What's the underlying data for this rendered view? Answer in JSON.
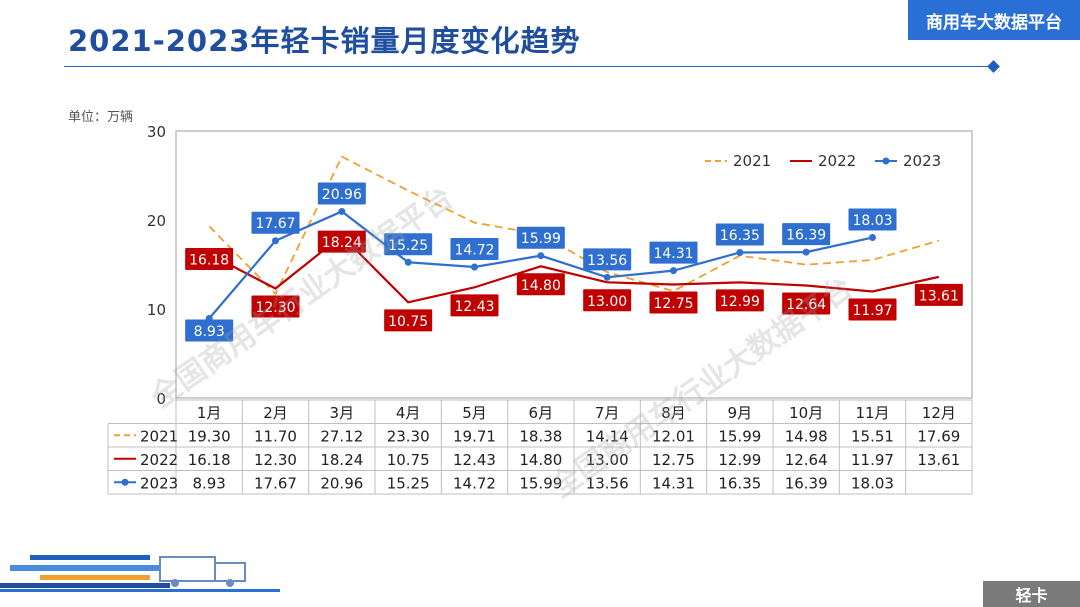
{
  "page": {
    "title": "2021-2023年轻卡销量月度变化趋势",
    "brand": "商用车大数据平台",
    "unit": "单位：万辆",
    "footer_tag": "轻卡",
    "watermark": "全国商用车行业大数据平台"
  },
  "colors": {
    "s2021": "#f0a030",
    "s2022": "#c00000",
    "s2023": "#2e6fd0",
    "title": "#1f4e9e",
    "brand_bg": "#2a6fd6"
  },
  "chart_data": {
    "type": "line",
    "categories": [
      "1月",
      "2月",
      "3月",
      "4月",
      "5月",
      "6月",
      "7月",
      "8月",
      "9月",
      "10月",
      "11月",
      "12月"
    ],
    "ylim": [
      0,
      30
    ],
    "yticks": [
      0,
      10,
      20,
      30
    ],
    "grid": false,
    "legend": "top-right",
    "series": [
      {
        "name": "2021",
        "style": "dashed",
        "values": [
          19.3,
          11.7,
          27.12,
          23.3,
          19.71,
          18.38,
          14.14,
          12.01,
          15.99,
          14.98,
          15.51,
          17.69
        ],
        "labels": [
          "19.30",
          "11.70",
          "27.12",
          "23.30",
          "19.71",
          "18.38",
          "14.14",
          "12.01",
          "15.99",
          "14.98",
          "15.51",
          "17.69"
        ]
      },
      {
        "name": "2022",
        "style": "solid",
        "values": [
          16.18,
          12.3,
          18.24,
          10.75,
          12.43,
          14.8,
          13.0,
          12.75,
          12.99,
          12.64,
          11.97,
          13.61
        ],
        "labels": [
          "16.18",
          "12.30",
          "18.24",
          "10.75",
          "12.43",
          "14.80",
          "13.00",
          "12.75",
          "12.99",
          "12.64",
          "11.97",
          "13.61"
        ]
      },
      {
        "name": "2023",
        "style": "solid-marker",
        "values": [
          8.93,
          17.67,
          20.96,
          15.25,
          14.72,
          15.99,
          13.56,
          14.31,
          16.35,
          16.39,
          18.03,
          null
        ],
        "labels": [
          "8.93",
          "17.67",
          "20.96",
          "15.25",
          "14.72",
          "15.99",
          "13.56",
          "14.31",
          "16.35",
          "16.39",
          "18.03",
          ""
        ]
      }
    ]
  }
}
